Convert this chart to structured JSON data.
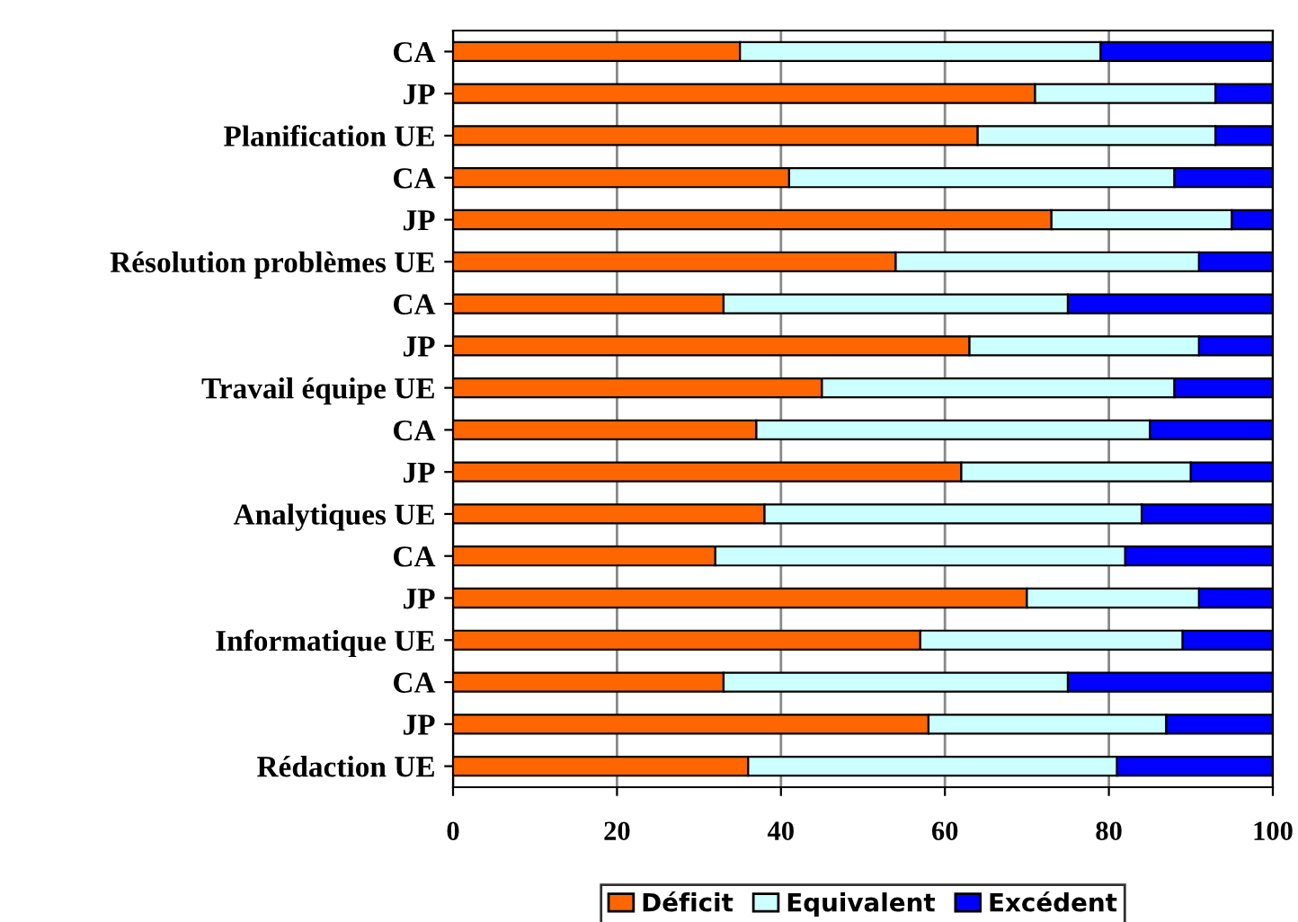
{
  "chart_data": {
    "type": "bar",
    "orientation": "horizontal",
    "stacked": true,
    "categories": [
      "CA",
      "JP",
      "Planification UE",
      "CA",
      "JP",
      "Résolution problèmes UE",
      "CA",
      "JP",
      "Travail équipe UE",
      "CA",
      "JP",
      "Analytiques UE",
      "CA",
      "JP",
      "Informatique UE",
      "CA",
      "JP",
      "Rédaction UE"
    ],
    "series": [
      {
        "name": "Déficit",
        "color": "#ff6600",
        "values": [
          35,
          71,
          64,
          41,
          73,
          54,
          33,
          63,
          45,
          37,
          62,
          38,
          32,
          70,
          57,
          33,
          58,
          36
        ]
      },
      {
        "name": "Equivalent",
        "color": "#ccffff",
        "values": [
          44,
          22,
          29,
          47,
          22,
          37,
          42,
          28,
          43,
          48,
          28,
          46,
          50,
          21,
          32,
          42,
          29,
          45
        ]
      },
      {
        "name": "Excédent",
        "color": "#0000ff",
        "values": [
          21,
          7,
          7,
          12,
          5,
          9,
          25,
          9,
          12,
          15,
          10,
          16,
          18,
          9,
          11,
          25,
          13,
          19
        ]
      }
    ],
    "xlim": [
      0,
      100
    ],
    "xticks": [
      0,
      20,
      40,
      60,
      80,
      100
    ],
    "grid": "x",
    "legend": "bottom"
  }
}
